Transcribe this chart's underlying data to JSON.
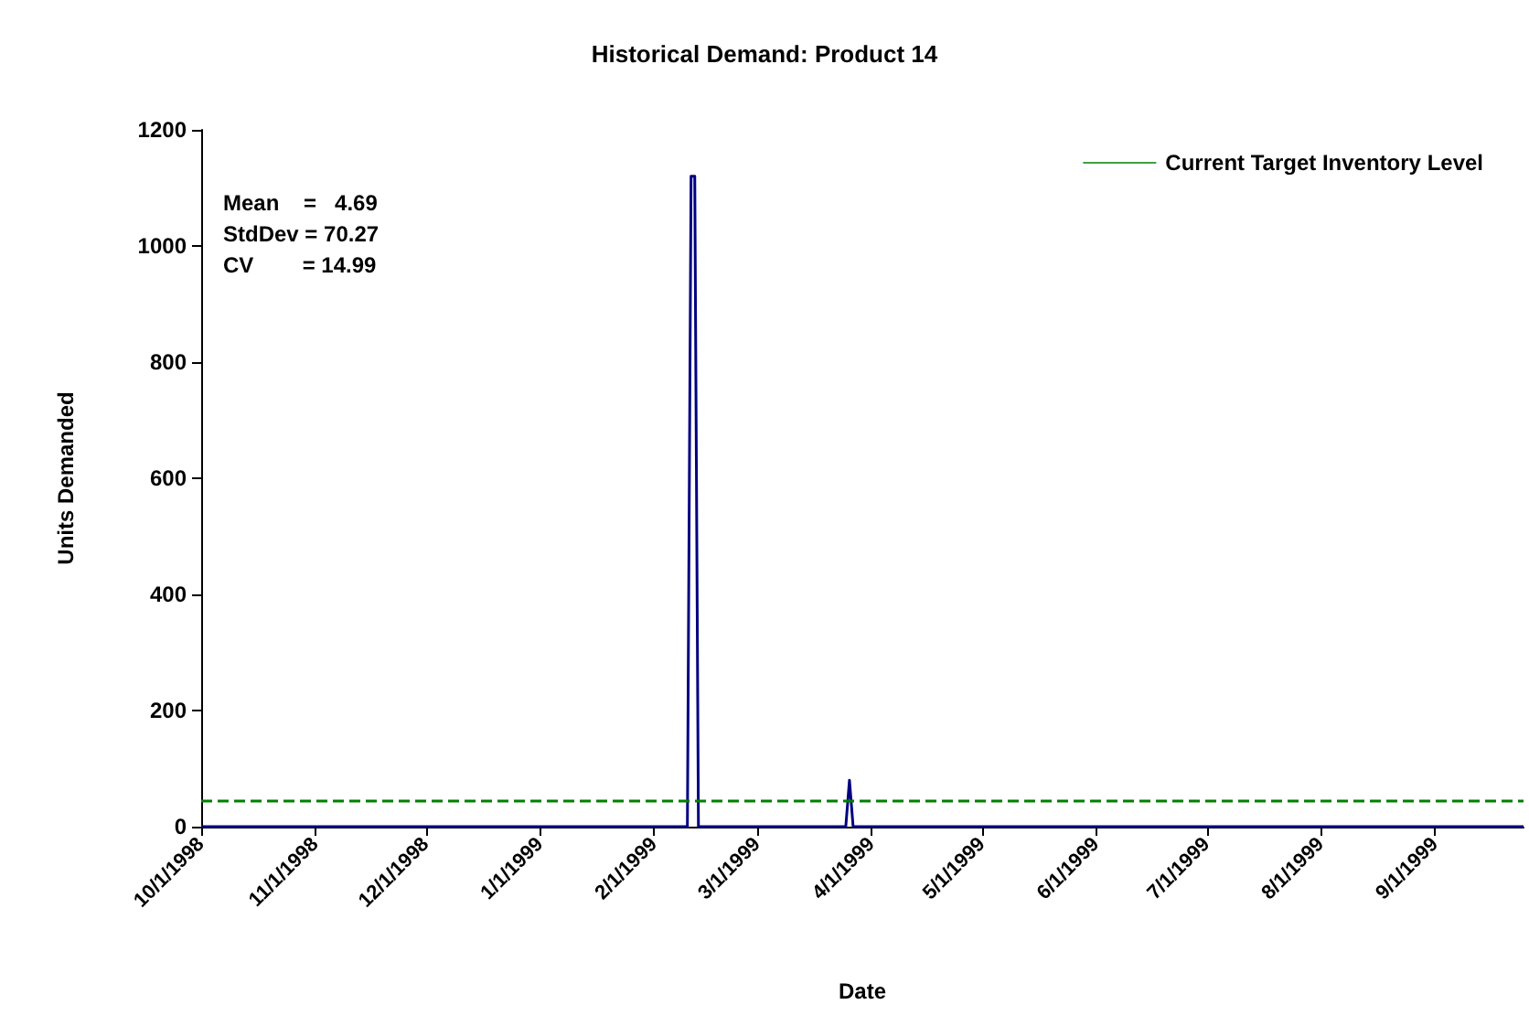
{
  "chart_data": {
    "type": "line",
    "title": "Historical Demand: Product 14",
    "xlabel": "Date",
    "ylabel": "Units Demanded",
    "series": [
      {
        "color": "#000080",
        "x": [
          "1998-10-01",
          "1999-02-10",
          "1999-02-11",
          "1999-02-12",
          "1999-02-13",
          "1999-03-25",
          "1999-03-26",
          "1999-03-27",
          "1999-09-25"
        ],
        "values": [
          0,
          0,
          1120,
          1120,
          0,
          0,
          80,
          0,
          0
        ]
      }
    ],
    "xlim": [
      "1998-10-01",
      "1999-09-25"
    ],
    "xticks": [
      {
        "value": "1998-10-01",
        "label": "10/1/1998"
      },
      {
        "value": "1998-11-01",
        "label": "11/1/1998"
      },
      {
        "value": "1998-12-01",
        "label": "12/1/1998"
      },
      {
        "value": "1999-01-01",
        "label": "1/1/1999"
      },
      {
        "value": "1999-02-01",
        "label": "2/1/1999"
      },
      {
        "value": "1999-03-01",
        "label": "3/1/1999"
      },
      {
        "value": "1999-04-01",
        "label": "4/1/1999"
      },
      {
        "value": "1999-05-01",
        "label": "5/1/1999"
      },
      {
        "value": "1999-06-01",
        "label": "6/1/1999"
      },
      {
        "value": "1999-07-01",
        "label": "7/1/1999"
      },
      {
        "value": "1999-08-01",
        "label": "8/1/1999"
      },
      {
        "value": "1999-09-01",
        "label": "9/1/1999"
      }
    ],
    "ylim": [
      0,
      1200
    ],
    "yticks": [
      0,
      200,
      400,
      600,
      800,
      1000,
      1200
    ],
    "ref_lines": [
      {
        "axis": "y",
        "value": 45,
        "label": "Current Target Inventory Level",
        "color": "#008000",
        "line_style": "dashed"
      }
    ],
    "annotations": [
      "Mean    =   4.69",
      "StdDev = 70.27",
      "CV        = 14.99"
    ],
    "grid": false,
    "legend": "top right",
    "marker": "none",
    "line_style": "solid"
  }
}
